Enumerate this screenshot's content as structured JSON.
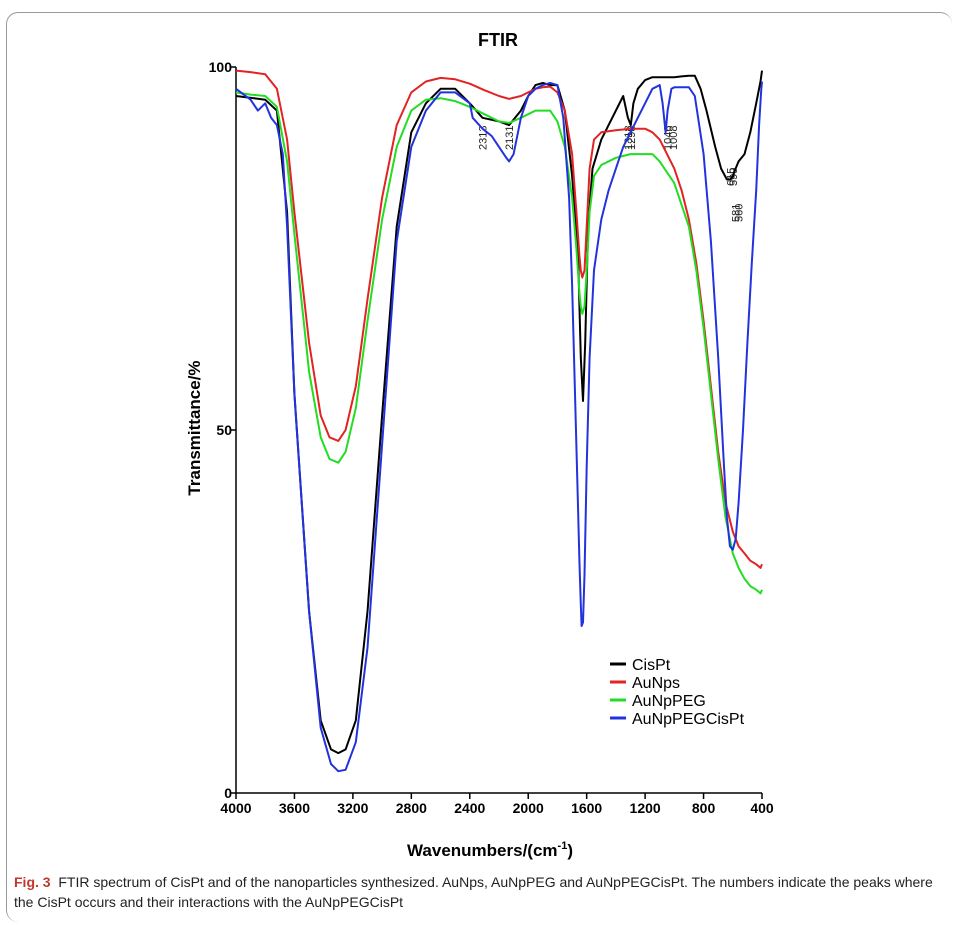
{
  "chart_data": {
    "type": "line",
    "title": "FTIR",
    "xlabel": "Wavenumbers/(cm",
    "xlabel_sup": "-1",
    "xlabel_suffix": ")",
    "ylabel": "Transmittance/%",
    "xlim": [
      4000,
      400
    ],
    "ylim": [
      0,
      100
    ],
    "x_ticks": [
      4000,
      3600,
      3200,
      2800,
      2400,
      2000,
      1600,
      1200,
      800,
      400
    ],
    "y_ticks": [
      0,
      50,
      100
    ],
    "legend_position": "bottom-right",
    "series": [
      {
        "name": "CisPt",
        "color": "#000000",
        "x": [
          4000,
          3800,
          3720,
          3650,
          3600,
          3500,
          3420,
          3350,
          3300,
          3250,
          3180,
          3100,
          3000,
          2900,
          2800,
          2700,
          2600,
          2500,
          2400,
          2313,
          2200,
          2131,
          2050,
          2000,
          1950,
          1900,
          1850,
          1800,
          1750,
          1700,
          1660,
          1640,
          1625,
          1610,
          1590,
          1560,
          1500,
          1450,
          1400,
          1350,
          1318,
          1298,
          1280,
          1250,
          1200,
          1150,
          1100,
          1050,
          1000,
          950,
          900,
          860,
          820,
          780,
          720,
          680,
          640,
          615,
          599,
          581,
          560,
          520,
          480,
          440,
          410,
          400
        ],
        "y": [
          96,
          95.5,
          94,
          80,
          55,
          25,
          10,
          6,
          5.5,
          6,
          10,
          25,
          52,
          78,
          91,
          95,
          97,
          97,
          95,
          93,
          92.5,
          92,
          94,
          96,
          97.5,
          97.8,
          97.5,
          97.5,
          94,
          85,
          75,
          60,
          54,
          62,
          78,
          86,
          90,
          92,
          94,
          96,
          93,
          92,
          95,
          97,
          98.2,
          98.6,
          98.6,
          98.6,
          98.6,
          98.7,
          98.8,
          98.8,
          97,
          94,
          89,
          86,
          84.5,
          84.5,
          85,
          86,
          87,
          88,
          91,
          95,
          98,
          99.5
        ]
      },
      {
        "name": "AuNps",
        "color": "#e32222",
        "x": [
          4000,
          3900,
          3800,
          3720,
          3650,
          3600,
          3500,
          3420,
          3360,
          3300,
          3250,
          3180,
          3100,
          3000,
          2900,
          2800,
          2700,
          2600,
          2500,
          2400,
          2300,
          2200,
          2131,
          2050,
          2000,
          1950,
          1900,
          1850,
          1800,
          1750,
          1700,
          1670,
          1650,
          1640,
          1630,
          1615,
          1600,
          1580,
          1550,
          1500,
          1400,
          1300,
          1200,
          1150,
          1100,
          1050,
          1000,
          950,
          900,
          850,
          800,
          750,
          700,
          650,
          600,
          560,
          520,
          480,
          440,
          410,
          400
        ],
        "y": [
          99.5,
          99.3,
          99,
          97,
          90,
          80,
          62,
          52,
          49,
          48.5,
          50,
          56,
          68,
          82,
          92,
          96.5,
          98,
          98.5,
          98.3,
          97.7,
          96.8,
          96,
          95.6,
          96,
          96.5,
          97,
          97.2,
          97.3,
          96.5,
          94,
          88,
          80,
          74,
          72,
          71,
          72,
          78,
          86,
          90,
          91,
          91.3,
          91.5,
          91.5,
          91,
          90,
          88,
          86,
          83,
          79,
          73,
          65,
          56,
          47,
          40,
          36,
          34,
          33,
          32,
          31.5,
          31,
          31.5
        ]
      },
      {
        "name": "AuNpPEG",
        "color": "#22dd22",
        "x": [
          4000,
          3900,
          3800,
          3720,
          3650,
          3600,
          3500,
          3420,
          3360,
          3300,
          3250,
          3180,
          3100,
          3000,
          2900,
          2800,
          2700,
          2600,
          2500,
          2400,
          2300,
          2200,
          2131,
          2050,
          2000,
          1950,
          1900,
          1850,
          1800,
          1750,
          1700,
          1670,
          1650,
          1640,
          1630,
          1615,
          1600,
          1580,
          1550,
          1500,
          1400,
          1300,
          1200,
          1150,
          1100,
          1050,
          1000,
          950,
          900,
          850,
          800,
          750,
          700,
          650,
          600,
          560,
          520,
          480,
          440,
          410,
          400
        ],
        "y": [
          96.5,
          96.2,
          96,
          94.5,
          87,
          77,
          58,
          49,
          46,
          45.5,
          47,
          53,
          65,
          79,
          89,
          94,
          95.5,
          95.7,
          95.3,
          94.5,
          93.5,
          92.5,
          92.3,
          93,
          93.5,
          94,
          94,
          94,
          92.5,
          89,
          82,
          75,
          69,
          67,
          66,
          67,
          72,
          80,
          85,
          86.5,
          87.5,
          88,
          88,
          88,
          87,
          85.5,
          84,
          81,
          78,
          72,
          64,
          55,
          46,
          38,
          33,
          31,
          29.5,
          28.5,
          28,
          27.5,
          28
        ]
      },
      {
        "name": "AuNpPEGCisPt",
        "color": "#2233dd",
        "x": [
          4000,
          3900,
          3850,
          3800,
          3760,
          3720,
          3680,
          3650,
          3600,
          3500,
          3420,
          3350,
          3300,
          3250,
          3180,
          3100,
          3000,
          2900,
          2800,
          2700,
          2600,
          2500,
          2400,
          2380,
          2313,
          2250,
          2200,
          2150,
          2131,
          2100,
          2050,
          2000,
          1950,
          1900,
          1850,
          1800,
          1760,
          1720,
          1700,
          1680,
          1660,
          1650,
          1640,
          1635,
          1625,
          1615,
          1600,
          1580,
          1550,
          1500,
          1450,
          1400,
          1350,
          1300,
          1250,
          1200,
          1150,
          1100,
          1080,
          1060,
          1046,
          1020,
          1000,
          950,
          900,
          860,
          800,
          750,
          700,
          660,
          640,
          620,
          600,
          580,
          560,
          530,
          500,
          470,
          440,
          420,
          405,
          400
        ],
        "y": [
          97,
          95.5,
          94,
          95,
          93,
          92,
          88,
          78,
          55,
          25,
          9,
          4,
          3,
          3.2,
          7,
          20,
          48,
          76,
          89,
          94,
          96.5,
          96.5,
          95,
          93,
          91.5,
          90.5,
          89,
          87.5,
          87,
          88,
          93,
          96,
          97,
          97.5,
          97.8,
          97.5,
          93,
          82,
          70,
          55,
          40,
          32,
          26,
          23,
          23.5,
          30,
          45,
          60,
          72,
          79,
          83,
          86,
          89,
          91,
          93,
          95,
          97,
          97.5,
          95,
          91,
          94,
          97,
          97.2,
          97.2,
          97.2,
          96,
          88,
          76,
          60,
          45,
          38,
          34,
          33.5,
          35,
          40,
          50,
          62,
          73,
          83,
          92,
          97,
          98
        ]
      }
    ],
    "peak_labels": [
      "2313",
      "2131",
      "1318",
      "1298",
      "1008",
      "1046",
      "615",
      "599",
      "581",
      "560"
    ]
  },
  "caption": {
    "label": "Fig. 3",
    "text": "FTIR spectrum of CisPt and of the nanoparticles synthesized. AuNps, AuNpPEG and AuNpPEGCisPt. The numbers indicate the peaks where the CisPt occurs and their interactions with the AuNpPEGCisPt"
  }
}
